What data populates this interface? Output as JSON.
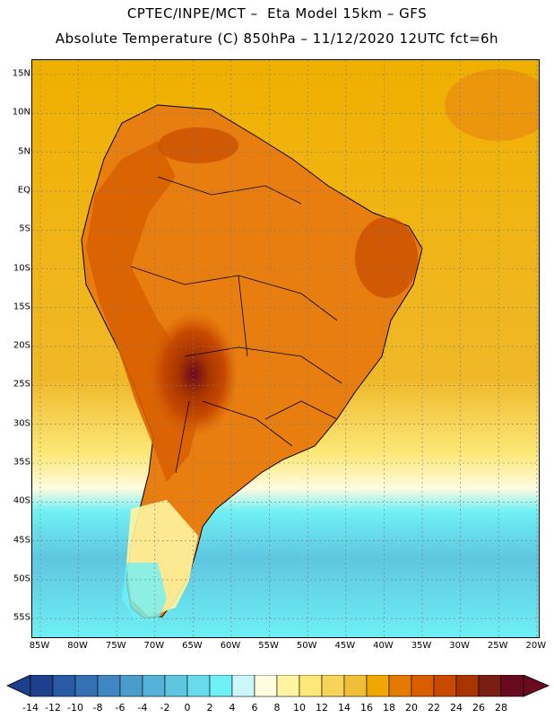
{
  "header": {
    "title_line1": "CPTEC/INPE/MCT –  Eta Model 15km – GFS",
    "title_line2": "Absolute Temperature (C) 850hPa – 11/12/2020 12UTC fct=6h"
  },
  "map": {
    "lat_labels": [
      "15N",
      "10N",
      "5N",
      "EQ",
      "5S",
      "10S",
      "15S",
      "20S",
      "25S",
      "30S",
      "35S",
      "40S",
      "45S",
      "50S",
      "55S"
    ],
    "lon_labels": [
      "85W",
      "80W",
      "75W",
      "70W",
      "65W",
      "60W",
      "55W",
      "50W",
      "45W",
      "40W",
      "35W",
      "30W",
      "25W",
      "20W"
    ],
    "ocean_base_color": "#f0a800",
    "land_hot_color": "#c84a00",
    "coastline_color": "#000000"
  },
  "colorbar": {
    "labels": [
      "-14",
      "-12",
      "-10",
      "-8",
      "-6",
      "-4",
      "-2",
      "0",
      "2",
      "4",
      "6",
      "8",
      "10",
      "12",
      "14",
      "16",
      "18",
      "20",
      "22",
      "24",
      "26",
      "28"
    ],
    "colors": [
      "#1d3f8c",
      "#2a59a6",
      "#3570b5",
      "#3f86c2",
      "#4a9ccd",
      "#55b2d8",
      "#5fc6e0",
      "#67dbeb",
      "#6ff0f5",
      "#cdf6fb",
      "#fffbe0",
      "#fff5a0",
      "#fbe878",
      "#f5d457",
      "#f0bf3a",
      "#f0a800",
      "#e57a00",
      "#d85e00",
      "#c84a00",
      "#a83400",
      "#7a1e14",
      "#6a0a1e"
    ]
  }
}
